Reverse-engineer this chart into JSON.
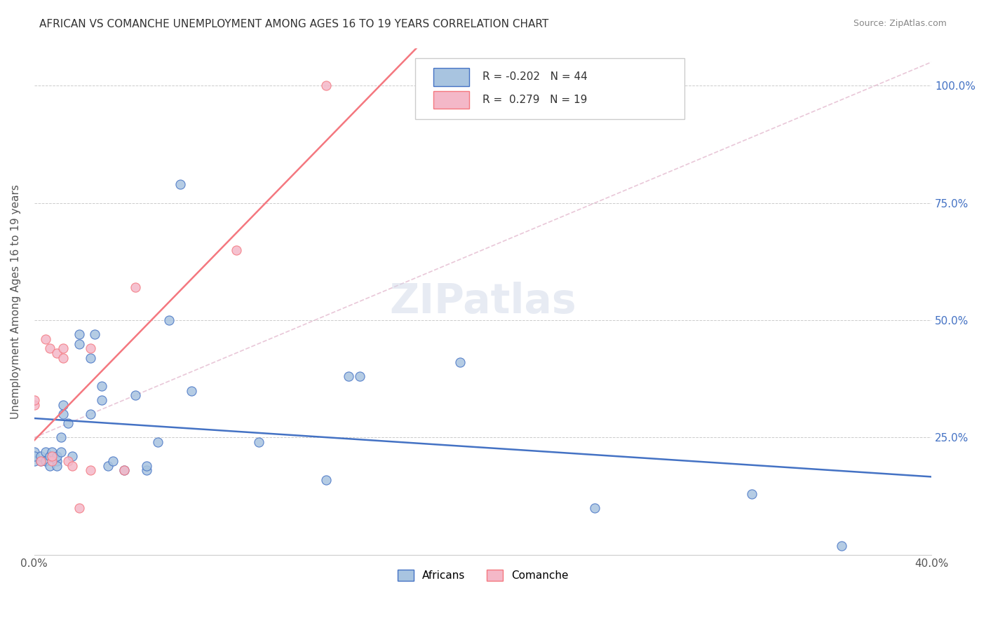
{
  "title": "AFRICAN VS COMANCHE UNEMPLOYMENT AMONG AGES 16 TO 19 YEARS CORRELATION CHART",
  "source": "Source: ZipAtlas.com",
  "xlabel": "",
  "ylabel": "Unemployment Among Ages 16 to 19 years",
  "xlim": [
    0.0,
    0.4
  ],
  "ylim": [
    0.0,
    1.05
  ],
  "yticks": [
    0.0,
    0.25,
    0.5,
    0.75,
    1.0
  ],
  "xticks": [
    0.0,
    0.05,
    0.1,
    0.15,
    0.2,
    0.25,
    0.3,
    0.35,
    0.4
  ],
  "xtick_labels": [
    "0.0%",
    "",
    "",
    "",
    "",
    "",
    "",
    "",
    "40.0%"
  ],
  "ytick_labels": [
    "",
    "25.0%",
    "50.0%",
    "75.0%",
    "100.0%"
  ],
  "africans_R": -0.202,
  "africans_N": 44,
  "comanche_R": 0.279,
  "comanche_N": 19,
  "africans_color": "#a8c4e0",
  "comanche_color": "#f4b8c8",
  "africans_line_color": "#4472c4",
  "comanche_line_color": "#f4777f",
  "trend_line_color": "#d0b0d0",
  "watermark": "ZIPatlas",
  "africans_x": [
    0.0,
    0.0,
    0.0,
    0.003,
    0.003,
    0.005,
    0.005,
    0.007,
    0.007,
    0.008,
    0.01,
    0.01,
    0.01,
    0.012,
    0.012,
    0.013,
    0.013,
    0.015,
    0.017,
    0.02,
    0.02,
    0.025,
    0.025,
    0.027,
    0.03,
    0.03,
    0.033,
    0.035,
    0.04,
    0.045,
    0.05,
    0.05,
    0.055,
    0.06,
    0.065,
    0.07,
    0.1,
    0.13,
    0.14,
    0.145,
    0.19,
    0.25,
    0.32,
    0.36
  ],
  "africans_y": [
    0.2,
    0.22,
    0.21,
    0.2,
    0.21,
    0.22,
    0.2,
    0.21,
    0.19,
    0.22,
    0.2,
    0.21,
    0.19,
    0.22,
    0.25,
    0.32,
    0.3,
    0.28,
    0.21,
    0.45,
    0.47,
    0.42,
    0.3,
    0.47,
    0.33,
    0.36,
    0.19,
    0.2,
    0.18,
    0.34,
    0.18,
    0.19,
    0.24,
    0.5,
    0.79,
    0.35,
    0.24,
    0.16,
    0.38,
    0.38,
    0.41,
    0.1,
    0.13,
    0.02
  ],
  "comanche_x": [
    0.0,
    0.0,
    0.003,
    0.005,
    0.007,
    0.008,
    0.008,
    0.01,
    0.013,
    0.013,
    0.015,
    0.017,
    0.02,
    0.025,
    0.025,
    0.04,
    0.045,
    0.09,
    0.13
  ],
  "comanche_y": [
    0.32,
    0.33,
    0.2,
    0.46,
    0.44,
    0.2,
    0.21,
    0.43,
    0.42,
    0.44,
    0.2,
    0.19,
    0.1,
    0.18,
    0.44,
    0.18,
    0.57,
    0.65,
    1.0
  ]
}
